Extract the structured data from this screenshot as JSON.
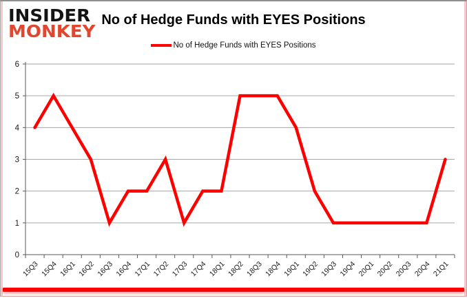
{
  "logo": {
    "line1": "INSIDER",
    "line2": "MONKEY",
    "color_top": "#141414",
    "color_bottom": "#e0472e"
  },
  "header": {
    "title": "No of Hedge Funds with EYES Positions"
  },
  "legend": {
    "label": "No of Hedge Funds with EYES Positions",
    "line_color": "#ff0000",
    "position": "top-center"
  },
  "colors": {
    "series_line": "#ff0000",
    "gridline": "#a6a6a6",
    "axis": "#595959",
    "tick_label": "#1a1a1a",
    "frame_bottom_bar": "#ff0000"
  },
  "chart_data": {
    "type": "line",
    "title": "No of Hedge Funds with EYES Positions",
    "categories": [
      "15Q3",
      "15Q4",
      "16Q1",
      "16Q2",
      "16Q3",
      "16Q4",
      "17Q1",
      "17Q2",
      "17Q3",
      "17Q4",
      "18Q1",
      "18Q2",
      "18Q3",
      "18Q4",
      "19Q1",
      "19Q2",
      "19Q3",
      "19Q4",
      "20Q1",
      "20Q2",
      "20Q3",
      "20Q4",
      "21Q1"
    ],
    "series": [
      {
        "name": "No of Hedge Funds with EYES Positions",
        "color": "#ff0000",
        "values": [
          4,
          5,
          4,
          3,
          1,
          2,
          2,
          3,
          1,
          2,
          2,
          5,
          5,
          5,
          4,
          2,
          1,
          1,
          1,
          1,
          1,
          1,
          3
        ]
      }
    ],
    "xlabel": "",
    "ylabel": "",
    "ylim": [
      0,
      6
    ],
    "yticks": [
      0,
      1,
      2,
      3,
      4,
      5,
      6
    ],
    "grid": "horizontal",
    "legend_position": "top"
  }
}
